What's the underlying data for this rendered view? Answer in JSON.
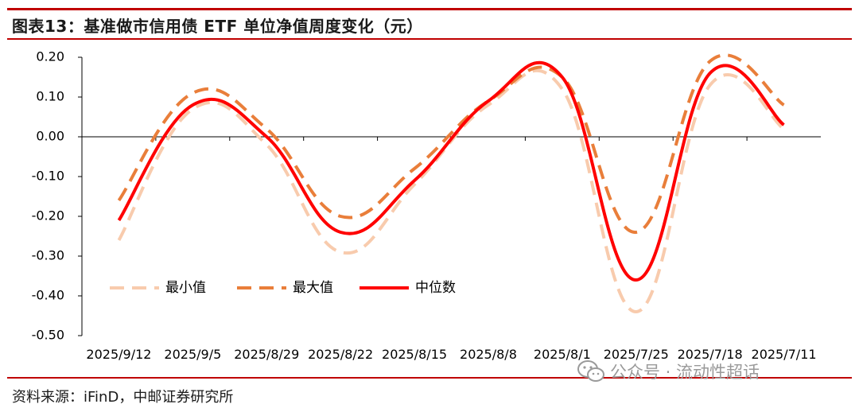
{
  "header": {
    "title": "图表13：基准做市信用债 ETF 单位净值周度变化（元）"
  },
  "footer": {
    "source": "资料来源：iFinD，中邮证券研究所",
    "watermark": "公众号 · 流动性超话"
  },
  "colors": {
    "accent": "#c00000",
    "min_series": "#f8cbad",
    "max_series": "#e97e3a",
    "median_series": "#ff0000",
    "negative_tick": "#e00000"
  },
  "icons": {
    "watermark": "wechat-icon"
  },
  "chart_data": {
    "type": "line",
    "title": "",
    "xlabel": "",
    "ylabel": "",
    "ylim": [
      -0.5,
      0.2
    ],
    "yticks": [
      "0.20",
      "0.10",
      "0.00",
      "-0.10",
      "-0.20",
      "-0.30",
      "-0.40",
      "-0.50"
    ],
    "ytick_values": [
      0.2,
      0.1,
      0.0,
      -0.1,
      -0.2,
      -0.3,
      -0.4,
      -0.5
    ],
    "categories": [
      "2025/9/12",
      "2025/9/5",
      "2025/8/29",
      "2025/8/22",
      "2025/8/15",
      "2025/8/8",
      "2025/8/1",
      "2025/7/25",
      "2025/7/18",
      "2025/7/11"
    ],
    "legend_position": "lower-left",
    "grid": false,
    "series": [
      {
        "name": "最小值",
        "style": "dashed",
        "values": [
          -0.26,
          0.07,
          -0.02,
          -0.29,
          -0.12,
          0.08,
          0.12,
          -0.44,
          0.13,
          0.02
        ]
      },
      {
        "name": "最大值",
        "style": "dashed",
        "values": [
          -0.16,
          0.11,
          0.02,
          -0.2,
          -0.08,
          0.09,
          0.15,
          -0.24,
          0.19,
          0.08
        ]
      },
      {
        "name": "中位数",
        "style": "solid",
        "values": [
          -0.21,
          0.08,
          0.0,
          -0.24,
          -0.11,
          0.09,
          0.15,
          -0.36,
          0.16,
          0.03
        ]
      }
    ]
  }
}
